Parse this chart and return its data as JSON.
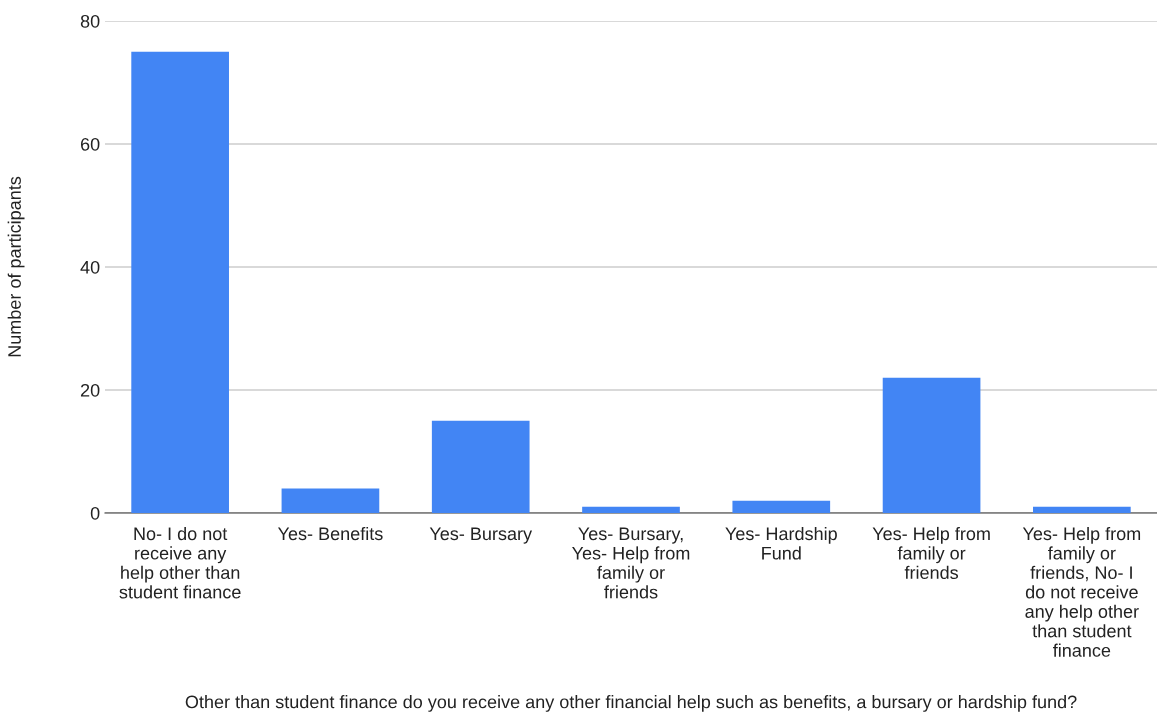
{
  "chart_data": {
    "type": "bar",
    "xlabel": "Other than student finance do you receive any other financial help such as benefits, a bursary or hardship fund?",
    "ylabel": "Number of participants",
    "categories": [
      "No- I do not receive any help other than student finance",
      "Yes- Benefits",
      "Yes- Bursary",
      "Yes- Bursary, Yes- Help from family or friends",
      "Yes- Hardship Fund",
      "Yes- Help from family or friends",
      "Yes- Help from family or friends, No- I do not receive any help other than student finance"
    ],
    "values": [
      75,
      4,
      15,
      1,
      2,
      22,
      1
    ],
    "color": "#4285f4",
    "ylim": [
      0,
      80
    ],
    "yticks": [
      0,
      20,
      40,
      60,
      80
    ],
    "grid": "y"
  }
}
